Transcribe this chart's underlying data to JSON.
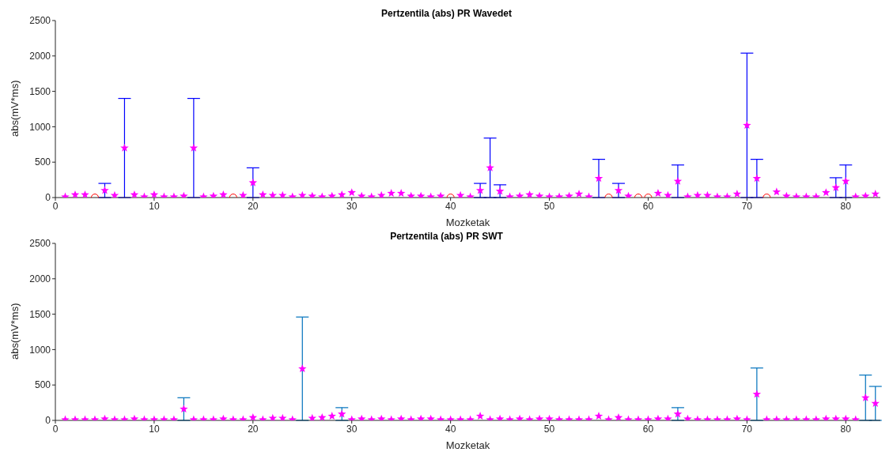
{
  "chart_data": [
    {
      "type": "scatter",
      "title": "Pertzentila (abs) PR Wavedet",
      "xlabel": "Mozketak",
      "ylabel": "abs(mV*ms)",
      "xlim": [
        0,
        83.5
      ],
      "xticks": [
        0,
        10,
        20,
        30,
        40,
        50,
        60,
        70,
        80
      ],
      "ylim": [
        0,
        2500
      ],
      "yticks": [
        0,
        500,
        1000,
        1500,
        2000,
        2500
      ],
      "grid": false,
      "legend": false,
      "x": [
        1,
        2,
        3,
        4,
        5,
        6,
        7,
        8,
        9,
        10,
        11,
        12,
        13,
        14,
        15,
        16,
        17,
        18,
        19,
        20,
        21,
        22,
        23,
        24,
        25,
        26,
        27,
        28,
        29,
        30,
        31,
        32,
        33,
        34,
        35,
        36,
        37,
        38,
        39,
        40,
        41,
        42,
        43,
        44,
        45,
        46,
        47,
        48,
        49,
        50,
        51,
        52,
        53,
        54,
        55,
        56,
        57,
        58,
        59,
        60,
        61,
        62,
        63,
        64,
        65,
        66,
        67,
        68,
        69,
        70,
        71,
        72,
        73,
        74,
        75,
        76,
        77,
        78,
        79,
        80,
        81,
        82,
        83
      ],
      "series": [
        {
          "color": "#ff00ff",
          "marker": "star",
          "values": [
            10,
            40,
            40,
            null,
            100,
            30,
            700,
            40,
            10,
            40,
            10,
            10,
            20,
            700,
            10,
            20,
            40,
            null,
            30,
            210,
            40,
            30,
            30,
            10,
            30,
            20,
            10,
            20,
            40,
            70,
            20,
            10,
            30,
            60,
            60,
            20,
            20,
            10,
            20,
            null,
            30,
            10,
            100,
            420,
            90,
            10,
            20,
            40,
            20,
            10,
            10,
            20,
            50,
            10,
            270,
            null,
            100,
            20,
            null,
            null,
            60,
            30,
            230,
            10,
            30,
            30,
            10,
            10,
            50,
            1020,
            270,
            null,
            80,
            20,
            10,
            10,
            10,
            70,
            140,
            230,
            10,
            20,
            50
          ],
          "errors": [
            null,
            null,
            null,
            null,
            100,
            null,
            700,
            null,
            null,
            null,
            null,
            null,
            null,
            700,
            null,
            null,
            null,
            null,
            null,
            210,
            null,
            null,
            null,
            null,
            null,
            null,
            null,
            null,
            null,
            null,
            null,
            null,
            null,
            null,
            null,
            null,
            null,
            null,
            null,
            null,
            null,
            null,
            100,
            420,
            90,
            null,
            null,
            null,
            null,
            null,
            null,
            null,
            null,
            null,
            270,
            null,
            100,
            null,
            null,
            null,
            null,
            null,
            230,
            null,
            null,
            null,
            null,
            null,
            null,
            1020,
            270,
            null,
            null,
            null,
            null,
            null,
            null,
            null,
            140,
            230,
            null,
            null,
            null
          ]
        },
        {
          "color": "#ff0000",
          "marker": "circle",
          "values": [
            null,
            null,
            null,
            0,
            null,
            null,
            null,
            null,
            null,
            null,
            null,
            null,
            null,
            null,
            null,
            null,
            null,
            0,
            null,
            null,
            null,
            null,
            null,
            null,
            null,
            null,
            null,
            null,
            null,
            null,
            null,
            null,
            null,
            null,
            null,
            null,
            null,
            null,
            null,
            0,
            null,
            null,
            null,
            null,
            null,
            null,
            null,
            null,
            null,
            null,
            null,
            null,
            null,
            null,
            null,
            0,
            null,
            null,
            0,
            0,
            null,
            null,
            null,
            null,
            null,
            null,
            null,
            null,
            null,
            null,
            null,
            0,
            null,
            null,
            null,
            null,
            null,
            null,
            null,
            null,
            null,
            null,
            null
          ]
        }
      ]
    },
    {
      "type": "scatter",
      "title": "Pertzentila (abs) PR SWT",
      "xlabel": "Mozketak",
      "ylabel": "abs(mV*ms)",
      "xlim": [
        0,
        83.5
      ],
      "xticks": [
        0,
        10,
        20,
        30,
        40,
        50,
        60,
        70,
        80
      ],
      "ylim": [
        0,
        2500
      ],
      "yticks": [
        0,
        500,
        1000,
        1500,
        2000,
        2500
      ],
      "grid": false,
      "legend": false,
      "x": [
        1,
        2,
        3,
        4,
        5,
        6,
        7,
        8,
        9,
        10,
        11,
        12,
        13,
        14,
        15,
        16,
        17,
        18,
        19,
        20,
        21,
        22,
        23,
        24,
        25,
        26,
        27,
        28,
        29,
        30,
        31,
        32,
        33,
        34,
        35,
        36,
        37,
        38,
        39,
        40,
        41,
        42,
        43,
        44,
        45,
        46,
        47,
        48,
        49,
        50,
        51,
        52,
        53,
        54,
        55,
        56,
        57,
        58,
        59,
        60,
        61,
        62,
        63,
        64,
        65,
        66,
        67,
        68,
        69,
        70,
        71,
        72,
        73,
        74,
        75,
        76,
        77,
        78,
        79,
        80,
        81,
        82,
        83
      ],
      "series": [
        {
          "color": "#ff00ff",
          "marker": "star",
          "values": [
            10,
            10,
            10,
            10,
            20,
            10,
            10,
            20,
            10,
            10,
            10,
            10,
            160,
            10,
            10,
            10,
            20,
            10,
            10,
            40,
            10,
            30,
            30,
            10,
            730,
            30,
            40,
            60,
            90,
            10,
            20,
            10,
            20,
            10,
            20,
            10,
            20,
            20,
            10,
            10,
            10,
            10,
            60,
            10,
            20,
            10,
            20,
            10,
            20,
            20,
            10,
            10,
            10,
            10,
            60,
            10,
            40,
            10,
            10,
            10,
            20,
            20,
            90,
            20,
            10,
            10,
            10,
            10,
            20,
            10,
            370,
            10,
            10,
            10,
            10,
            10,
            10,
            20,
            20,
            20,
            10,
            320,
            240
          ],
          "errors": [
            null,
            null,
            null,
            null,
            null,
            null,
            null,
            null,
            null,
            null,
            null,
            null,
            160,
            null,
            null,
            null,
            null,
            null,
            null,
            null,
            null,
            null,
            null,
            null,
            730,
            null,
            null,
            null,
            90,
            null,
            null,
            null,
            null,
            null,
            null,
            null,
            null,
            null,
            null,
            null,
            null,
            null,
            null,
            null,
            null,
            null,
            null,
            null,
            null,
            null,
            null,
            null,
            null,
            null,
            null,
            null,
            null,
            null,
            null,
            null,
            null,
            null,
            90,
            null,
            null,
            null,
            null,
            null,
            null,
            null,
            370,
            null,
            null,
            null,
            null,
            null,
            null,
            null,
            null,
            null,
            null,
            320,
            240
          ]
        }
      ]
    }
  ]
}
